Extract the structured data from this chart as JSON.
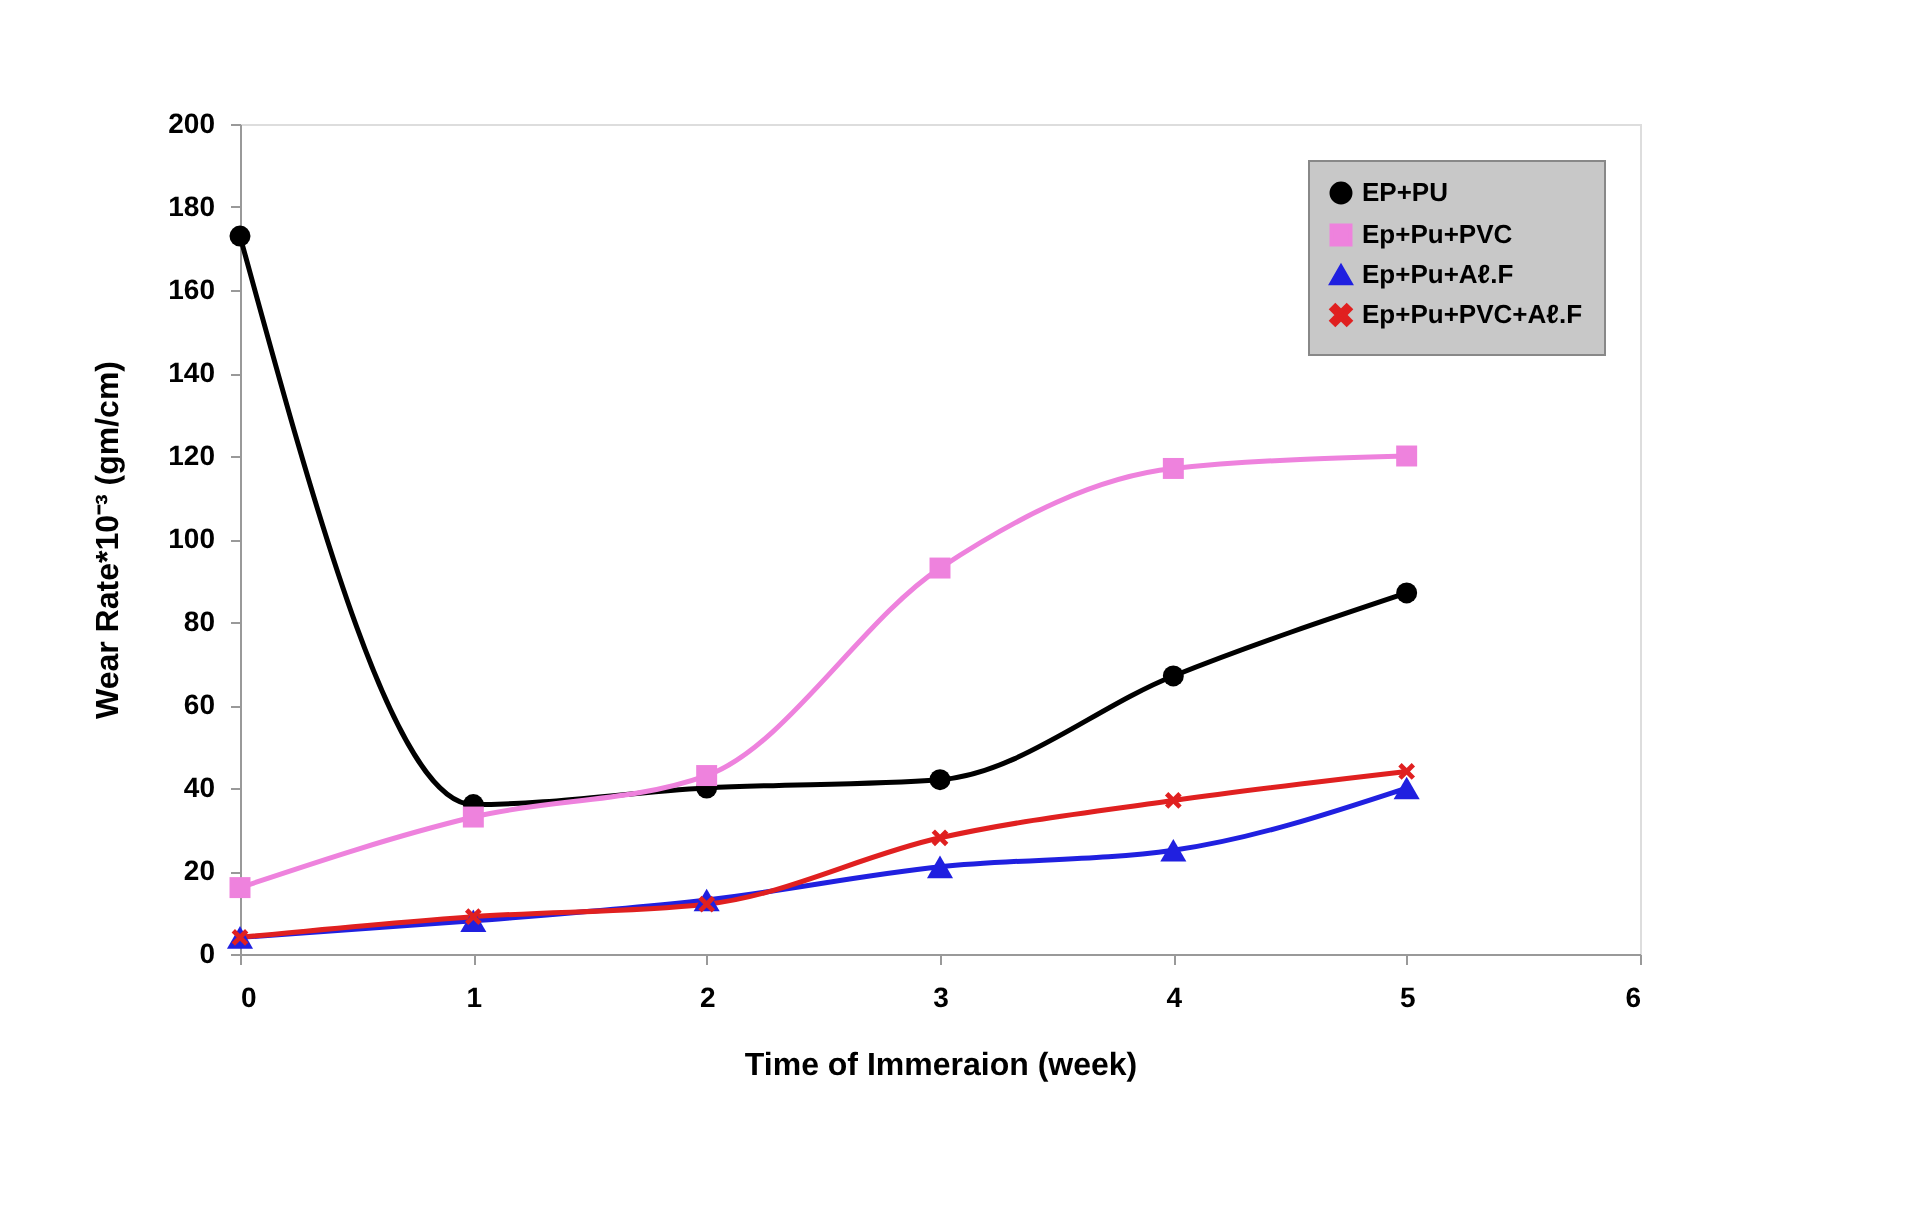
{
  "chart_data": {
    "type": "line",
    "xlabel": "Time of Immeraion (week)",
    "ylabel": "Wear Rate*10⁻³ (gm/cm)",
    "x": [
      0,
      1,
      2,
      3,
      4,
      5
    ],
    "xlim": [
      0,
      6
    ],
    "xticks": [
      0,
      1,
      2,
      3,
      4,
      5,
      6
    ],
    "ylim": [
      0,
      200
    ],
    "yticks": [
      0,
      20,
      40,
      60,
      80,
      100,
      120,
      140,
      160,
      180,
      200
    ],
    "grid": false,
    "legend": "top right",
    "line_style": "solid",
    "series": [
      {
        "name": "EP+PU",
        "color": "#000000",
        "marker": "circle",
        "values": [
          173,
          36,
          40,
          42,
          67,
          87
        ]
      },
      {
        "name": "Ep+Pu+PVC",
        "color": "#ee82dd",
        "marker": "square",
        "values": [
          16,
          33,
          43,
          93,
          117,
          120
        ]
      },
      {
        "name": "Ep+Pu+Aℓ.F",
        "color": "#2020e0",
        "marker": "triangle",
        "values": [
          4,
          8,
          13,
          21,
          25,
          40
        ]
      },
      {
        "name": "Ep+Pu+PVC+Aℓ.F",
        "color": "#e02020",
        "marker": "cross",
        "values": [
          4,
          9,
          12,
          28,
          37,
          44
        ]
      }
    ]
  }
}
